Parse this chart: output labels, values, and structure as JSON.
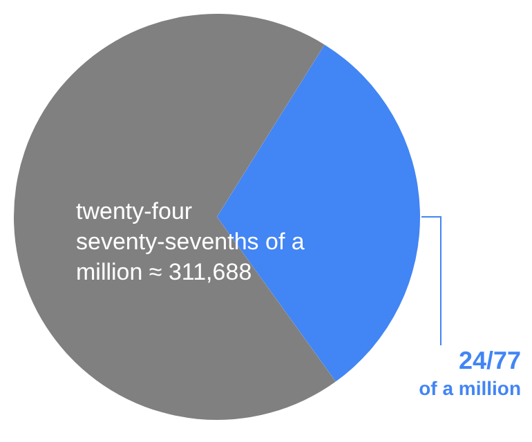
{
  "chart_data": {
    "type": "pie",
    "categories": [
      "24/77 of a million",
      null
    ],
    "values": [
      31.17,
      68.83
    ],
    "colors": [
      "#4285f4",
      "#808080"
    ],
    "annotations": [
      "twenty-four seventy-sevenths of a million ≈ 311,688"
    ]
  }
}
